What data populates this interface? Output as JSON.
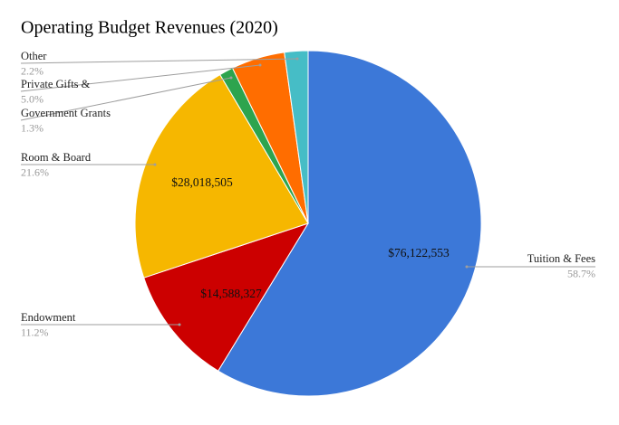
{
  "chart_data": {
    "type": "pie",
    "title": "Operating Budget Revenues (2020)",
    "categories": [
      "Tuition & Fees",
      "Endowment",
      "Room & Board",
      "Government Grants",
      "Private Gifts &",
      "Other"
    ],
    "values": [
      58.7,
      11.2,
      21.6,
      1.3,
      5.0,
      2.2
    ],
    "value_labels": [
      "58.7%",
      "11.2%",
      "21.6%",
      "1.3%",
      "5.0%",
      "2.2%"
    ],
    "amount_labels": [
      "$76,122,553",
      "$14,588,327",
      "$28,018,505",
      null,
      null,
      null
    ],
    "colors": [
      "#3c78d8",
      "#cc0000",
      "#f6b700",
      "#2da44e",
      "#ff6d00",
      "#46bdc6"
    ]
  }
}
